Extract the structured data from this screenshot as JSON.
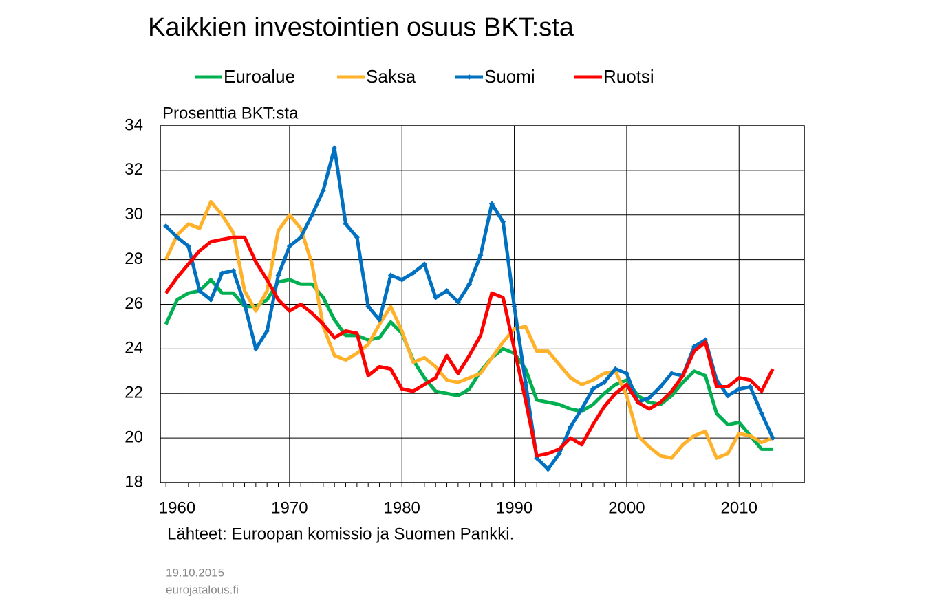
{
  "chart_data": {
    "type": "line",
    "title": "Kaikkien investointien osuus BKT:sta",
    "ylabel": "Prosenttia BKT:sta",
    "source": "Lähteet: Euroopan komissio ja Suomen Pankki.",
    "date": "19.10.2015",
    "publisher": "eurojatalous.fi",
    "x": [
      1959,
      1960,
      1961,
      1962,
      1963,
      1964,
      1965,
      1966,
      1967,
      1968,
      1969,
      1970,
      1971,
      1972,
      1973,
      1974,
      1975,
      1976,
      1977,
      1978,
      1979,
      1980,
      1981,
      1982,
      1983,
      1984,
      1985,
      1986,
      1987,
      1988,
      1989,
      1990,
      1991,
      1992,
      1993,
      1994,
      1995,
      1996,
      1997,
      1998,
      1999,
      2000,
      2001,
      2002,
      2003,
      2004,
      2005,
      2006,
      2007,
      2008,
      2009,
      2010,
      2011,
      2012,
      2013
    ],
    "xlim": [
      1958.5,
      2015.8
    ],
    "xticks": [
      1960,
      1970,
      1980,
      1990,
      2000,
      2010
    ],
    "ylim": [
      18,
      34
    ],
    "yticks": [
      18,
      20,
      22,
      24,
      26,
      28,
      30,
      32,
      34
    ],
    "grid": true,
    "series": [
      {
        "name": "Euroalue",
        "color": "#00b050",
        "values": [
          25.1,
          26.2,
          26.5,
          26.6,
          27.1,
          26.5,
          26.5,
          25.9,
          25.9,
          26.2,
          27.0,
          27.1,
          26.9,
          26.9,
          26.3,
          25.3,
          24.6,
          24.6,
          24.4,
          24.5,
          25.2,
          24.7,
          23.5,
          22.7,
          22.1,
          22.0,
          21.9,
          22.2,
          23.0,
          23.6,
          24.0,
          23.8,
          23.1,
          21.7,
          21.6,
          21.5,
          21.3,
          21.2,
          21.5,
          22.0,
          22.4,
          22.6,
          21.9,
          21.6,
          21.5,
          21.9,
          22.5,
          23.0,
          22.8,
          21.1,
          20.6,
          20.7,
          20.1,
          19.5,
          19.5
        ]
      },
      {
        "name": "Saksa",
        "color": "#ffb12a",
        "values": [
          28.0,
          29.1,
          29.6,
          29.4,
          30.6,
          30.0,
          29.2,
          26.6,
          25.7,
          26.6,
          29.3,
          30.0,
          29.4,
          27.8,
          25.0,
          23.7,
          23.5,
          23.8,
          24.2,
          25.1,
          25.9,
          24.8,
          23.4,
          23.6,
          23.2,
          22.6,
          22.5,
          22.7,
          22.9,
          23.6,
          24.3,
          24.9,
          25.0,
          23.9,
          23.9,
          23.3,
          22.7,
          22.4,
          22.6,
          22.9,
          23.0,
          21.9,
          20.1,
          19.6,
          19.2,
          19.1,
          19.7,
          20.1,
          20.3,
          19.1,
          19.3,
          20.2,
          20.1,
          19.8,
          20.0
        ]
      },
      {
        "name": "Suomi",
        "color": "#0070c0",
        "marker": "diamond",
        "values": [
          29.5,
          29.0,
          28.6,
          26.6,
          26.2,
          27.4,
          27.5,
          26.0,
          24.0,
          24.8,
          27.3,
          28.6,
          29.0,
          30.0,
          31.1,
          33.0,
          29.6,
          29.0,
          25.9,
          25.3,
          27.3,
          27.1,
          27.4,
          27.8,
          26.3,
          26.6,
          26.1,
          26.9,
          28.2,
          30.5,
          29.7,
          25.9,
          22.5,
          19.1,
          18.6,
          19.3,
          20.5,
          21.3,
          22.2,
          22.5,
          23.1,
          22.9,
          21.6,
          21.8,
          22.3,
          22.9,
          22.8,
          24.1,
          24.4,
          22.6,
          21.9,
          22.2,
          22.3,
          21.1,
          20.0
        ]
      },
      {
        "name": "Ruotsi",
        "color": "#ff0000",
        "values": [
          26.5,
          27.2,
          27.8,
          28.4,
          28.8,
          28.9,
          29.0,
          29.0,
          27.9,
          27.1,
          26.2,
          25.7,
          26.0,
          25.6,
          25.1,
          24.5,
          24.8,
          24.7,
          22.8,
          23.2,
          23.1,
          22.2,
          22.1,
          22.4,
          22.7,
          23.7,
          22.9,
          23.7,
          24.6,
          26.5,
          26.3,
          24.0,
          21.7,
          19.2,
          19.3,
          19.5,
          20.0,
          19.7,
          20.6,
          21.4,
          22.0,
          22.4,
          21.6,
          21.3,
          21.6,
          22.1,
          22.8,
          23.9,
          24.3,
          22.3,
          22.3,
          22.7,
          22.6,
          22.1,
          23.1
        ]
      }
    ]
  }
}
